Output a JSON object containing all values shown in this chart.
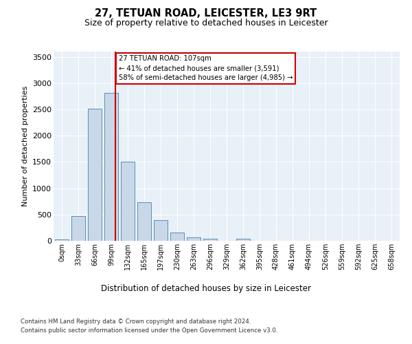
{
  "title_line1": "27, TETUAN ROAD, LEICESTER, LE3 9RT",
  "title_line2": "Size of property relative to detached houses in Leicester",
  "xlabel": "Distribution of detached houses by size in Leicester",
  "ylabel": "Number of detached properties",
  "bar_color": "#c8d8e8",
  "bar_edge_color": "#5b8db8",
  "background_color": "#e8f0f8",
  "bar_categories": [
    "0sqm",
    "33sqm",
    "66sqm",
    "99sqm",
    "132sqm",
    "165sqm",
    "197sqm",
    "230sqm",
    "263sqm",
    "296sqm",
    "329sqm",
    "362sqm",
    "395sqm",
    "428sqm",
    "461sqm",
    "494sqm",
    "526sqm",
    "559sqm",
    "592sqm",
    "625sqm",
    "658sqm"
  ],
  "bar_values": [
    20,
    470,
    2510,
    2820,
    1510,
    730,
    390,
    155,
    70,
    40,
    0,
    40,
    0,
    0,
    0,
    0,
    0,
    0,
    0,
    0,
    0
  ],
  "vline_color": "#cc0000",
  "vline_x": 3.24,
  "annotation_text_line1": "27 TETUAN ROAD: 107sqm",
  "annotation_text_line2": "← 41% of detached houses are smaller (3,591)",
  "annotation_text_line3": "58% of semi-detached houses are larger (4,985) →",
  "annotation_box_color": "#ffffff",
  "annotation_box_edge": "#cc0000",
  "ylim": [
    0,
    3600
  ],
  "yticks": [
    0,
    500,
    1000,
    1500,
    2000,
    2500,
    3000,
    3500
  ],
  "footer_line1": "Contains HM Land Registry data © Crown copyright and database right 2024.",
  "footer_line2": "Contains public sector information licensed under the Open Government Licence v3.0."
}
